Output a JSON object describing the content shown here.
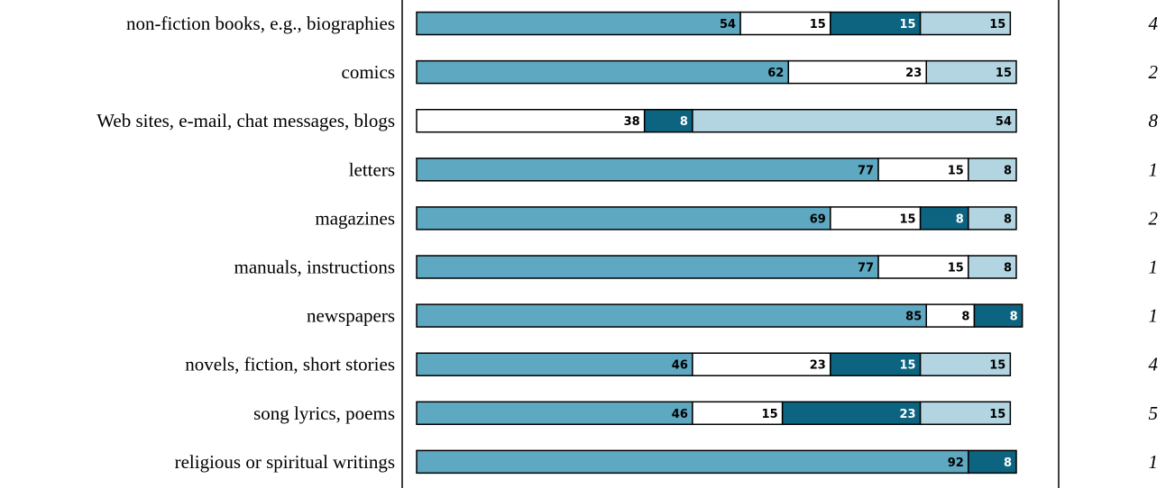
{
  "chart_data": {
    "type": "bar",
    "orientation": "horizontal",
    "stacked": true,
    "title": "",
    "xlabel": "",
    "ylabel": "",
    "xlim": [
      0,
      100
    ],
    "grid": false,
    "legend": "none",
    "categories": [
      "non-fiction books, e.g., biographies",
      "comics",
      "Web sites, e-mail, chat messages, blogs",
      "letters",
      "magazines",
      "manuals, instructions",
      "newspapers",
      "novels, fiction, short stories",
      "song lyrics, poems",
      "religious or spiritual writings"
    ],
    "n": [
      "4",
      "2",
      "8",
      "1",
      "2",
      "1",
      "1",
      "4",
      "5",
      "1"
    ],
    "series": [
      {
        "color": "#5ea8c2",
        "label_color": "#000000",
        "values": [
          54,
          62,
          0,
          77,
          69,
          77,
          85,
          46,
          46,
          92
        ]
      },
      {
        "color": "#ffffff",
        "label_color": "#000000",
        "values": [
          15,
          23,
          38,
          15,
          15,
          15,
          8,
          23,
          15,
          0
        ]
      },
      {
        "color": "#0c6480",
        "label_color": "#ffffff",
        "values": [
          15,
          0,
          8,
          0,
          8,
          0,
          8,
          15,
          23,
          8
        ]
      },
      {
        "color": "#b3d4e1",
        "label_color": "#000000",
        "values": [
          15,
          15,
          54,
          8,
          8,
          8,
          0,
          15,
          15,
          0
        ]
      }
    ]
  }
}
